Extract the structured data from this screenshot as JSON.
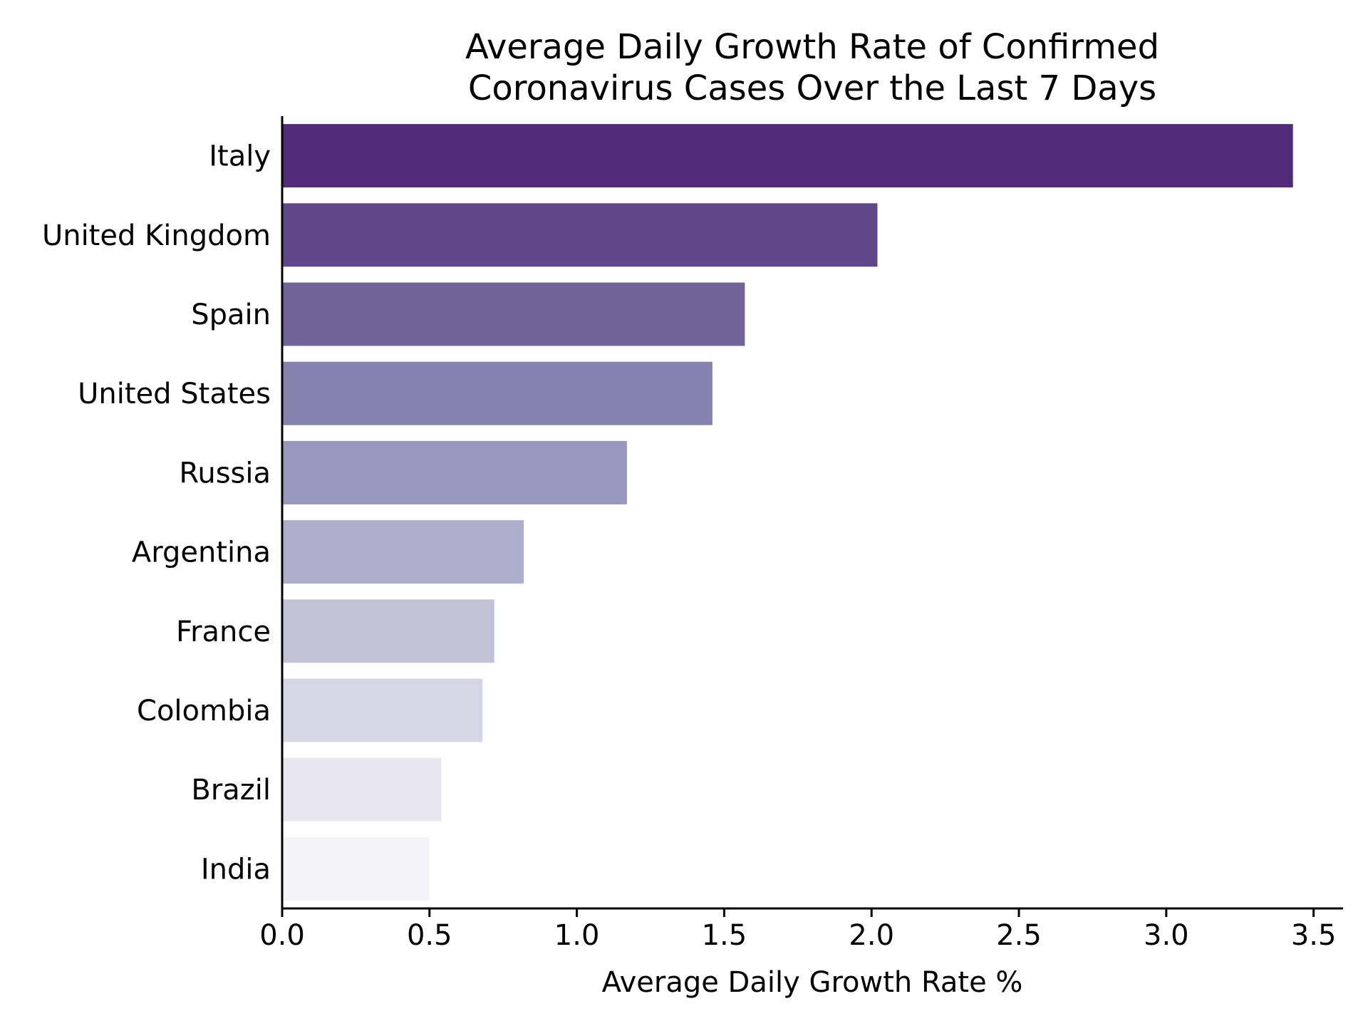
{
  "chart_data": {
    "type": "bar",
    "orientation": "horizontal",
    "title": "Average Daily Growth Rate of Confirmed Coronavirus Cases Over the Last 7 Days",
    "title_lines": [
      "Average Daily Growth Rate of Confirmed",
      "Coronavirus Cases Over the Last 7 Days"
    ],
    "xlabel": "Average Daily Growth Rate %",
    "ylabel": "",
    "categories": [
      "Italy",
      "United Kingdom",
      "Spain",
      "United States",
      "Russia",
      "Argentina",
      "France",
      "Colombia",
      "Brazil",
      "India"
    ],
    "values": [
      3.43,
      2.02,
      1.57,
      1.46,
      1.17,
      0.82,
      0.72,
      0.68,
      0.54,
      0.5
    ],
    "colors": [
      "#512a79",
      "#60468b",
      "#716399",
      "#8582b0",
      "#9897bd",
      "#adadcc",
      "#c3c3d8",
      "#d6d7e5",
      "#e7e6f0",
      "#f3f2f7"
    ],
    "xlim": [
      0,
      3.6
    ],
    "xticks": [
      0.0,
      0.5,
      1.0,
      1.5,
      2.0,
      2.5,
      3.0,
      3.5
    ],
    "xtick_labels": [
      "0.0",
      "0.5",
      "1.0",
      "1.5",
      "2.0",
      "2.5",
      "3.0",
      "3.5"
    ],
    "grid": false,
    "legend": "none"
  }
}
